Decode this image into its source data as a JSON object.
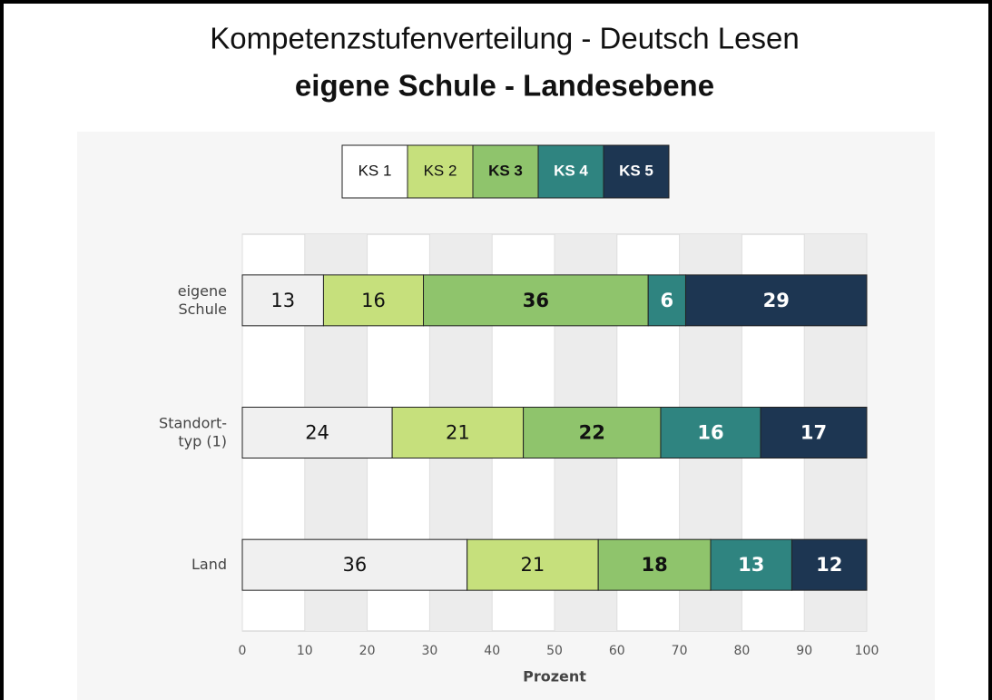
{
  "chart_data": {
    "type": "stacked_bar_horizontal",
    "title": "Kompetenzstufenverteilung - Deutsch Lesen",
    "subtitle": "eigene Schule - Landesebene",
    "categories": [
      "eigene\nSchule",
      "Standort-\ntyp (1)",
      "Land"
    ],
    "series": [
      {
        "name": "KS 1",
        "color": "#f0f0f0",
        "legend_color": "#ffffff",
        "text_color": "#111111",
        "values": [
          13,
          24,
          36
        ]
      },
      {
        "name": "KS 2",
        "color": "#c6e07c",
        "legend_color": "#c6e07c",
        "text_color": "#111111",
        "values": [
          16,
          21,
          21
        ]
      },
      {
        "name": "KS 3",
        "color": "#8fc46c",
        "legend_color": "#8fc46c",
        "text_color": "#111111",
        "values": [
          36,
          22,
          18
        ]
      },
      {
        "name": "KS 4",
        "color": "#2f8480",
        "legend_color": "#2f8480",
        "text_color": "#ffffff",
        "values": [
          6,
          16,
          13
        ]
      },
      {
        "name": "KS 5",
        "color": "#1d3652",
        "legend_color": "#1d3652",
        "text_color": "#ffffff",
        "values": [
          29,
          17,
          12
        ]
      }
    ],
    "xlabel": "Prozent",
    "xlim": [
      0,
      100
    ],
    "xticks": [
      0,
      10,
      20,
      30,
      40,
      50,
      60,
      70,
      80,
      90,
      100
    ],
    "grid": true
  }
}
